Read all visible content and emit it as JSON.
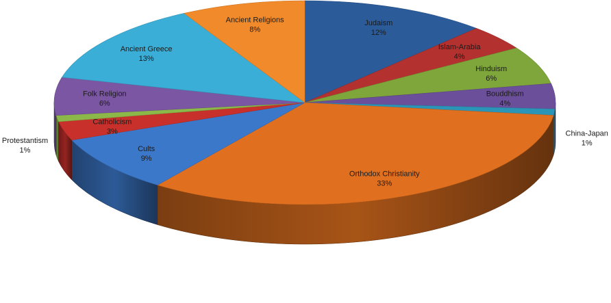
{
  "chart_data": {
    "type": "pie",
    "style": "3d",
    "legend": "none",
    "slices": [
      {
        "label": "Judaism",
        "value": 12,
        "percent_label": "12%",
        "color": "#2c5b9a"
      },
      {
        "label": "Islam-Arabia",
        "value": 4,
        "percent_label": "4%",
        "color": "#b3312e"
      },
      {
        "label": "Hinduism",
        "value": 6,
        "percent_label": "6%",
        "color": "#7fa63a"
      },
      {
        "label": "Bouddhism",
        "value": 4,
        "percent_label": "4%",
        "color": "#6b4f9a"
      },
      {
        "label": "China-Japan",
        "value": 1,
        "percent_label": "1%",
        "color": "#2b95b8"
      },
      {
        "label": "Orthodox Christianity",
        "value": 33,
        "percent_label": "33%",
        "color": "#e0701f"
      },
      {
        "label": "Cults",
        "value": 9,
        "percent_label": "9%",
        "color": "#3c78c9"
      },
      {
        "label": "Catholicism",
        "value": 3,
        "percent_label": "3%",
        "color": "#c8302b"
      },
      {
        "label": "Protestantism",
        "value": 1,
        "percent_label": "1%",
        "color": "#8cb84a"
      },
      {
        "label": "Folk Religion",
        "value": 6,
        "percent_label": "6%",
        "color": "#7b56a3"
      },
      {
        "label": "Ancient Greece",
        "value": 13,
        "percent_label": "13%",
        "color": "#3aaed6"
      },
      {
        "label": "Ancient Religions",
        "value": 8,
        "percent_label": "8%",
        "color": "#f08a2a"
      }
    ]
  }
}
